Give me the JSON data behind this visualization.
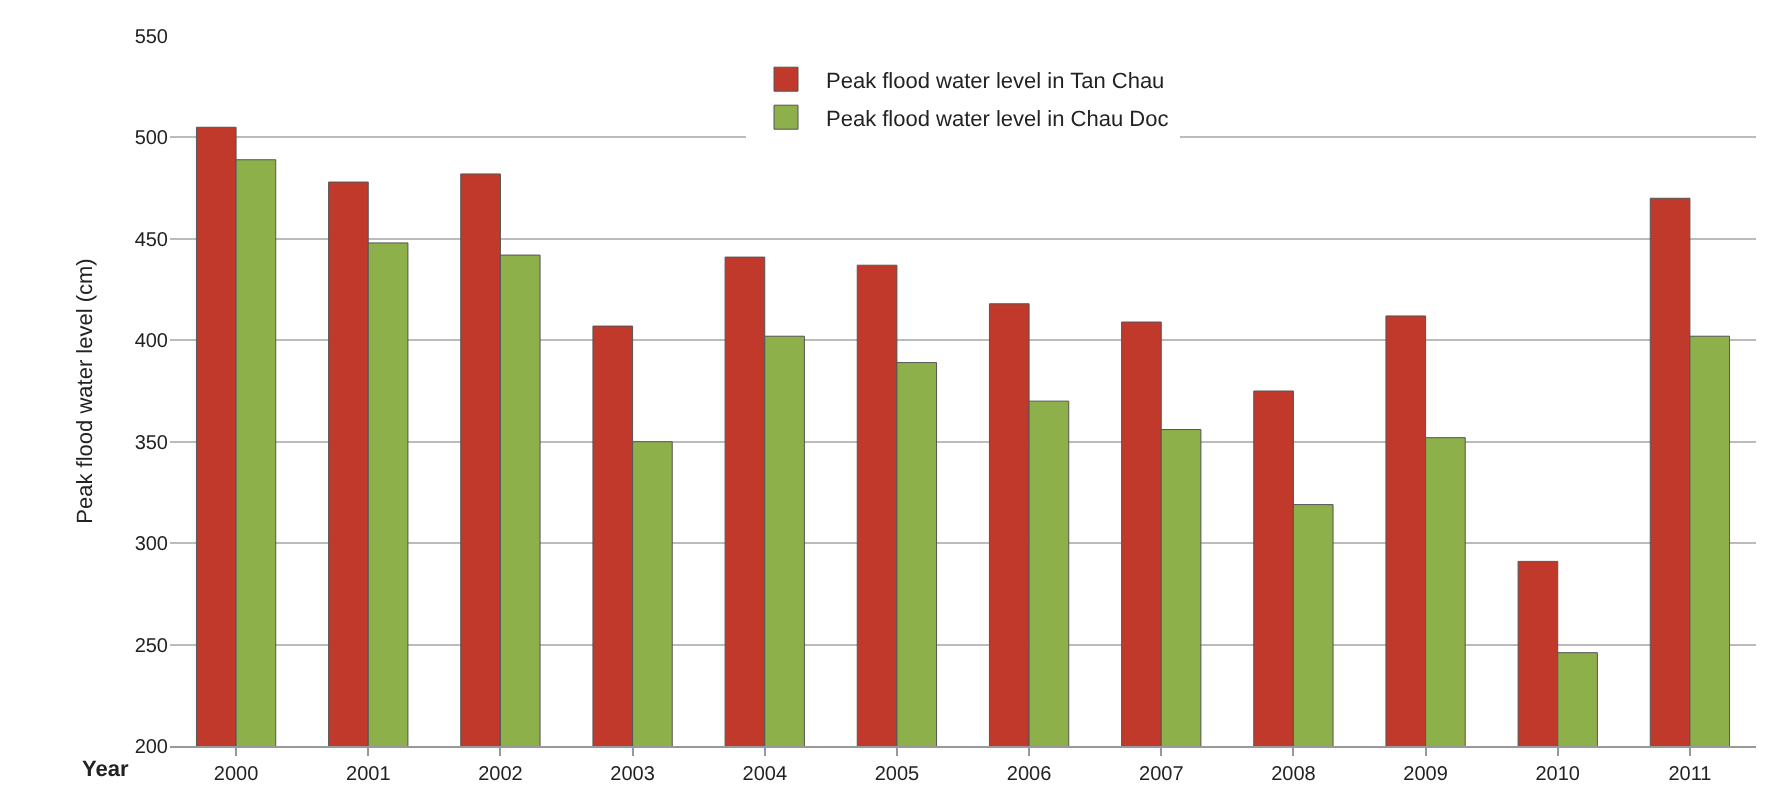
{
  "chart_data": {
    "type": "bar",
    "xlabel": "Year",
    "ylabel": "Peak flood water level (cm)",
    "categories": [
      "2000",
      "2001",
      "2002",
      "2003",
      "2004",
      "2005",
      "2006",
      "2007",
      "2008",
      "2009",
      "2010",
      "2011"
    ],
    "series": [
      {
        "name": "Peak flood water level in Tan Chau",
        "color": "#c0392b",
        "values": [
          505,
          478,
          482,
          407,
          441,
          437,
          418,
          409,
          375,
          412,
          291,
          470
        ]
      },
      {
        "name": "Peak flood water level in Chau Doc",
        "color": "#8db04a",
        "values": [
          489,
          448,
          442,
          350,
          402,
          389,
          370,
          356,
          319,
          352,
          246,
          402
        ]
      }
    ],
    "ylim": [
      200,
      550
    ],
    "yticks": [
      200,
      250,
      300,
      350,
      400,
      450,
      500,
      550
    ],
    "grid": "y",
    "legend": "top"
  }
}
